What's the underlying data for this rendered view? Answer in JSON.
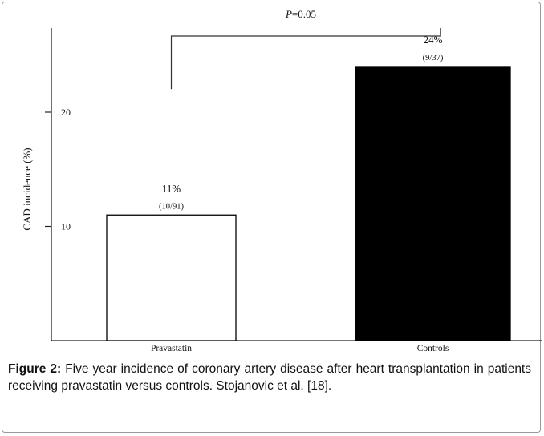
{
  "chart_data": {
    "type": "bar",
    "title": "",
    "xlabel": "",
    "ylabel": "CAD incidence (%)",
    "ylim": [
      0,
      30
    ],
    "yticks": [
      10,
      20
    ],
    "categories": [
      "Pravastatin",
      "Controls"
    ],
    "values": [
      11,
      24
    ],
    "bar_fill": [
      "#ffffff",
      "#000000"
    ],
    "bar_stroke": "#000000",
    "data_labels": [
      {
        "percent": "11%",
        "fraction": "(10/91)"
      },
      {
        "percent": "24%",
        "fraction": "(9/37)"
      }
    ],
    "significance": {
      "label_italic": "P",
      "label_rest": "=0.05",
      "between": [
        "Pravastatin",
        "Controls"
      ]
    },
    "grid": false,
    "legend": "none"
  },
  "caption": {
    "lead": "Figure 2:",
    "text": " Five year incidence of coronary artery disease after heart transplantation in patients receiving pravastatin versus controls. Stojanovic et al. [18]."
  }
}
